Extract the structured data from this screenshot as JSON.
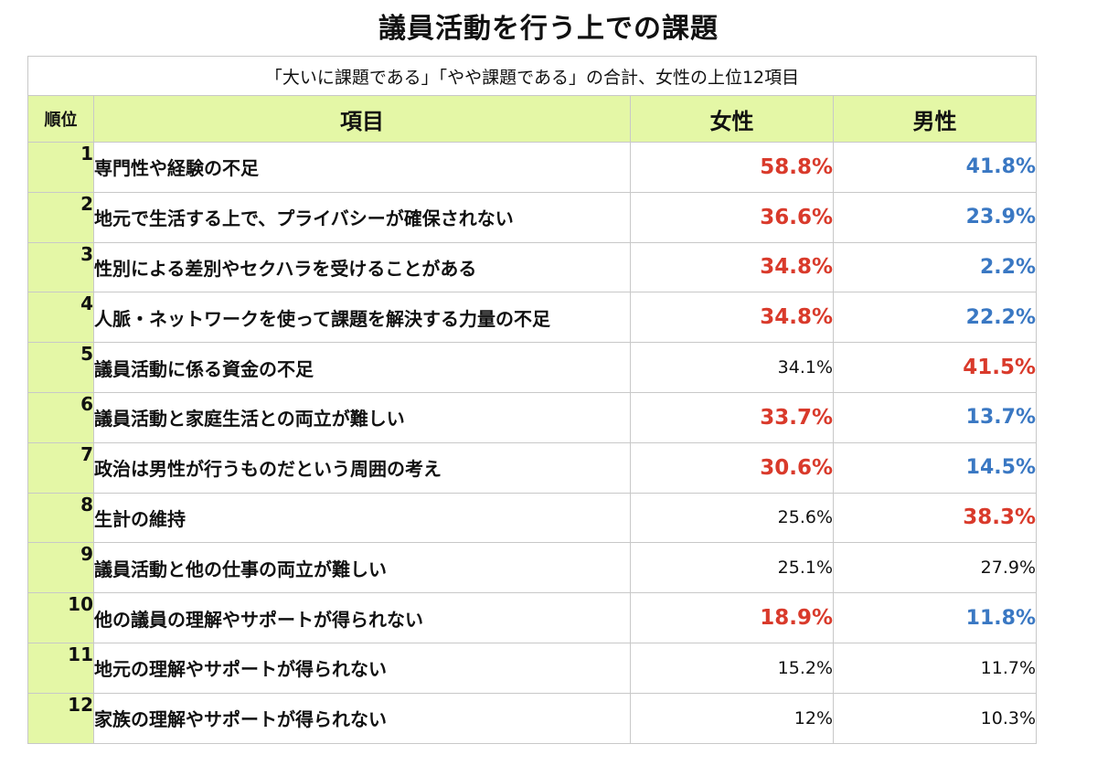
{
  "title": "議員活動を行う上での課題",
  "subtitle": "「大いに課題である」「やや課題である」の合計、女性の上位12項目",
  "headers": {
    "rank": "順位",
    "item": "項目",
    "female": "女性",
    "male": "男性"
  },
  "colors": {
    "header_bg": "#e4f7a6",
    "highlight_red": "#d93a2b",
    "highlight_blue": "#3a78c3"
  },
  "rows": [
    {
      "rank": "1",
      "item": "専門性や経験の不足",
      "female": "58.8%",
      "male": "41.8%",
      "female_style": "red",
      "male_style": "blue"
    },
    {
      "rank": "2",
      "item": "地元で生活する上で、プライバシーが確保されない",
      "female": "36.6%",
      "male": "23.9%",
      "female_style": "red",
      "male_style": "blue"
    },
    {
      "rank": "3",
      "item": "性別による差別やセクハラを受けることがある",
      "female": "34.8%",
      "male": "2.2%",
      "female_style": "red",
      "male_style": "blue"
    },
    {
      "rank": "4",
      "item": "人脈・ネットワークを使って課題を解決する力量の不足",
      "female": "34.8%",
      "male": "22.2%",
      "female_style": "red",
      "male_style": "blue"
    },
    {
      "rank": "5",
      "item": "議員活動に係る資金の不足",
      "female": "34.1%",
      "male": "41.5%",
      "female_style": "plain",
      "male_style": "red"
    },
    {
      "rank": "6",
      "item": "議員活動と家庭生活との両立が難しい",
      "female": "33.7%",
      "male": "13.7%",
      "female_style": "red",
      "male_style": "blue"
    },
    {
      "rank": "7",
      "item": "政治は男性が行うものだという周囲の考え",
      "female": "30.6%",
      "male": "14.5%",
      "female_style": "red",
      "male_style": "blue"
    },
    {
      "rank": "8",
      "item": "生計の維持",
      "female": "25.6%",
      "male": "38.3%",
      "female_style": "plain",
      "male_style": "red"
    },
    {
      "rank": "9",
      "item": "議員活動と他の仕事の両立が難しい",
      "female": "25.1%",
      "male": "27.9%",
      "female_style": "plain",
      "male_style": "plain"
    },
    {
      "rank": "10",
      "item": "他の議員の理解やサポートが得られない",
      "female": "18.9%",
      "male": "11.8%",
      "female_style": "red",
      "male_style": "blue"
    },
    {
      "rank": "11",
      "item": "地元の理解やサポートが得られない",
      "female": "15.2%",
      "male": "11.7%",
      "female_style": "plain",
      "male_style": "plain"
    },
    {
      "rank": "12",
      "item": "家族の理解やサポートが得られない",
      "female": "12%",
      "male": "10.3%",
      "female_style": "plain",
      "male_style": "plain"
    }
  ]
}
